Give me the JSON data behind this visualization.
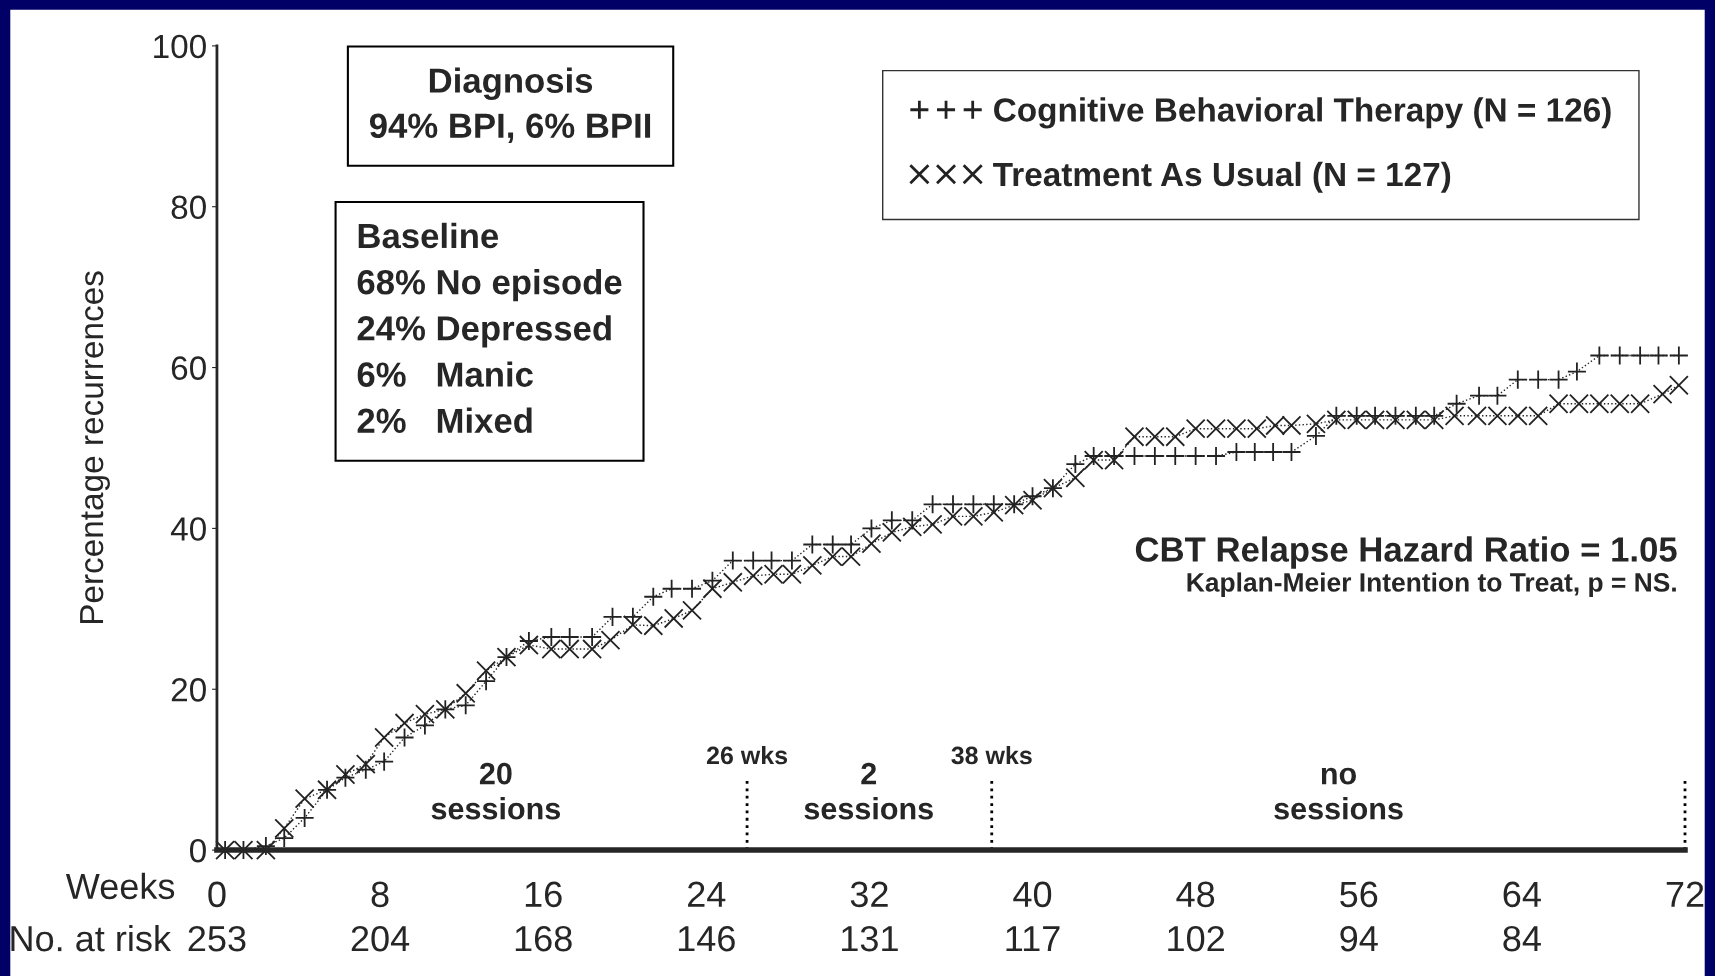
{
  "chart_data": {
    "type": "line",
    "xlabel": "Weeks",
    "ylabel": "Percentage recurrences",
    "xlim": [
      0,
      72
    ],
    "ylim": [
      0,
      100
    ],
    "xticks": [
      0,
      8,
      16,
      24,
      32,
      40,
      48,
      56,
      64,
      72
    ],
    "yticks": [
      0,
      20,
      40,
      60,
      80,
      100
    ],
    "grid": false,
    "legend": "top right",
    "line_style": "dotted",
    "series": [
      {
        "name": "Cognitive Behavioral Therapy (N = 126)",
        "marker": "plus",
        "color": "#222222",
        "x": [
          0.4,
          1.3,
          2.4,
          3.3,
          4.3,
          5.4,
          6.3,
          7.3,
          8.2,
          9.2,
          10.2,
          11.2,
          12.2,
          13.2,
          14.2,
          15.3,
          16.4,
          17.3,
          18.4,
          19.4,
          20.4,
          21.4,
          22.3,
          23.3,
          24.3,
          25.3,
          26.3,
          27.2,
          28.2,
          29.2,
          30.2,
          31.1,
          32.1,
          33.1,
          34.1,
          35.1,
          36.1,
          37.1,
          38.1,
          39.1,
          40.0,
          41.0,
          42.1,
          43.0,
          44.0,
          45.0,
          46.0,
          47.0,
          48.0,
          49.0,
          50.0,
          50.9,
          51.8,
          52.7,
          53.9,
          54.9,
          55.9,
          56.8,
          57.8,
          58.8,
          59.7,
          60.8,
          61.9,
          62.8,
          63.8,
          64.8,
          65.8,
          66.7,
          67.8,
          68.8,
          69.8,
          70.7,
          71.7
        ],
        "values": [
          0,
          0,
          0.5,
          1.5,
          4,
          7.5,
          9,
          10,
          11,
          14,
          15.5,
          17.5,
          18,
          21,
          24,
          26,
          26.5,
          26.5,
          26.5,
          29,
          29,
          31.5,
          32.5,
          32.5,
          33.5,
          36,
          36,
          36,
          36,
          38,
          38,
          38,
          40,
          41,
          41,
          43,
          43,
          43,
          43,
          43,
          44,
          45,
          48,
          49,
          49,
          49,
          49,
          49,
          49,
          49,
          49.5,
          49.5,
          49.5,
          49.5,
          51.5,
          54,
          54,
          54,
          54,
          54,
          54,
          55.5,
          56.5,
          56.5,
          58.5,
          58.5,
          58.5,
          59.5,
          61.5,
          61.5,
          61.5,
          61.5,
          61.5
        ]
      },
      {
        "name": "Treatment As Usual (N = 127)",
        "marker": "cross",
        "color": "#222222",
        "x": [
          0.4,
          1.3,
          2.4,
          3.3,
          4.3,
          5.4,
          6.3,
          7.3,
          8.2,
          9.2,
          10.2,
          11.2,
          12.2,
          13.2,
          14.2,
          15.3,
          16.4,
          17.3,
          18.4,
          19.3,
          20.4,
          21.4,
          22.4,
          23.3,
          24.3,
          25.3,
          26.3,
          27.3,
          28.2,
          29.2,
          30.2,
          31.1,
          32.1,
          33.1,
          34.1,
          35.1,
          36.1,
          37.1,
          38.1,
          39.1,
          40.0,
          41.0,
          42.1,
          43.0,
          44.0,
          45.0,
          46.0,
          47.0,
          48.0,
          49.0,
          50.0,
          51.0,
          51.9,
          52.7,
          53.9,
          54.9,
          55.9,
          56.8,
          57.8,
          58.8,
          59.7,
          60.7,
          61.8,
          62.8,
          63.8,
          64.8,
          65.8,
          66.8,
          67.8,
          68.8,
          69.8,
          70.9,
          71.7
        ],
        "values": [
          0,
          0,
          0,
          2.7,
          6.4,
          7.5,
          9.4,
          10.7,
          14,
          15.8,
          16.9,
          17.5,
          19.5,
          22.3,
          24,
          25.5,
          25,
          25,
          25,
          26.1,
          28,
          27.9,
          28.8,
          29.8,
          32.5,
          33.3,
          34.1,
          34.3,
          34.3,
          35.4,
          36.5,
          36.5,
          38.1,
          39.5,
          40.2,
          40.5,
          41.5,
          41.5,
          42,
          42.9,
          43.5,
          45,
          46.3,
          48.5,
          48.5,
          51.4,
          51.4,
          51.4,
          52.4,
          52.4,
          52.4,
          52.4,
          52.8,
          52.8,
          53,
          53.5,
          53.5,
          53.5,
          53.5,
          53.5,
          53.5,
          54,
          54,
          54,
          54,
          54,
          55.5,
          55.5,
          55.5,
          55.5,
          55.5,
          56.7,
          57.8
        ]
      }
    ],
    "ref_lines": [
      {
        "axis": "x",
        "value": 26,
        "label": "26 wks",
        "line_style": "dotted"
      },
      {
        "axis": "x",
        "value": 38,
        "label": "38 wks",
        "line_style": "dotted"
      },
      {
        "axis": "x",
        "value": 72,
        "line_style": "dotted"
      }
    ],
    "annotations": [
      "Diagnosis\n94% BPI, 6% BPII",
      "Baseline\n68% No episode\n24% Depressed\n6%   Manic\n2%   Mixed",
      "CBT Relapse Hazard Ratio = 1.05",
      "Kaplan-Meier Intention to Treat, p = NS.",
      "No. at risk",
      "20\nsessions",
      "2\nsessions",
      "no\nsessions",
      "253",
      "204",
      "168",
      "146",
      "131",
      "117",
      "102",
      "94",
      "84"
    ]
  }
}
